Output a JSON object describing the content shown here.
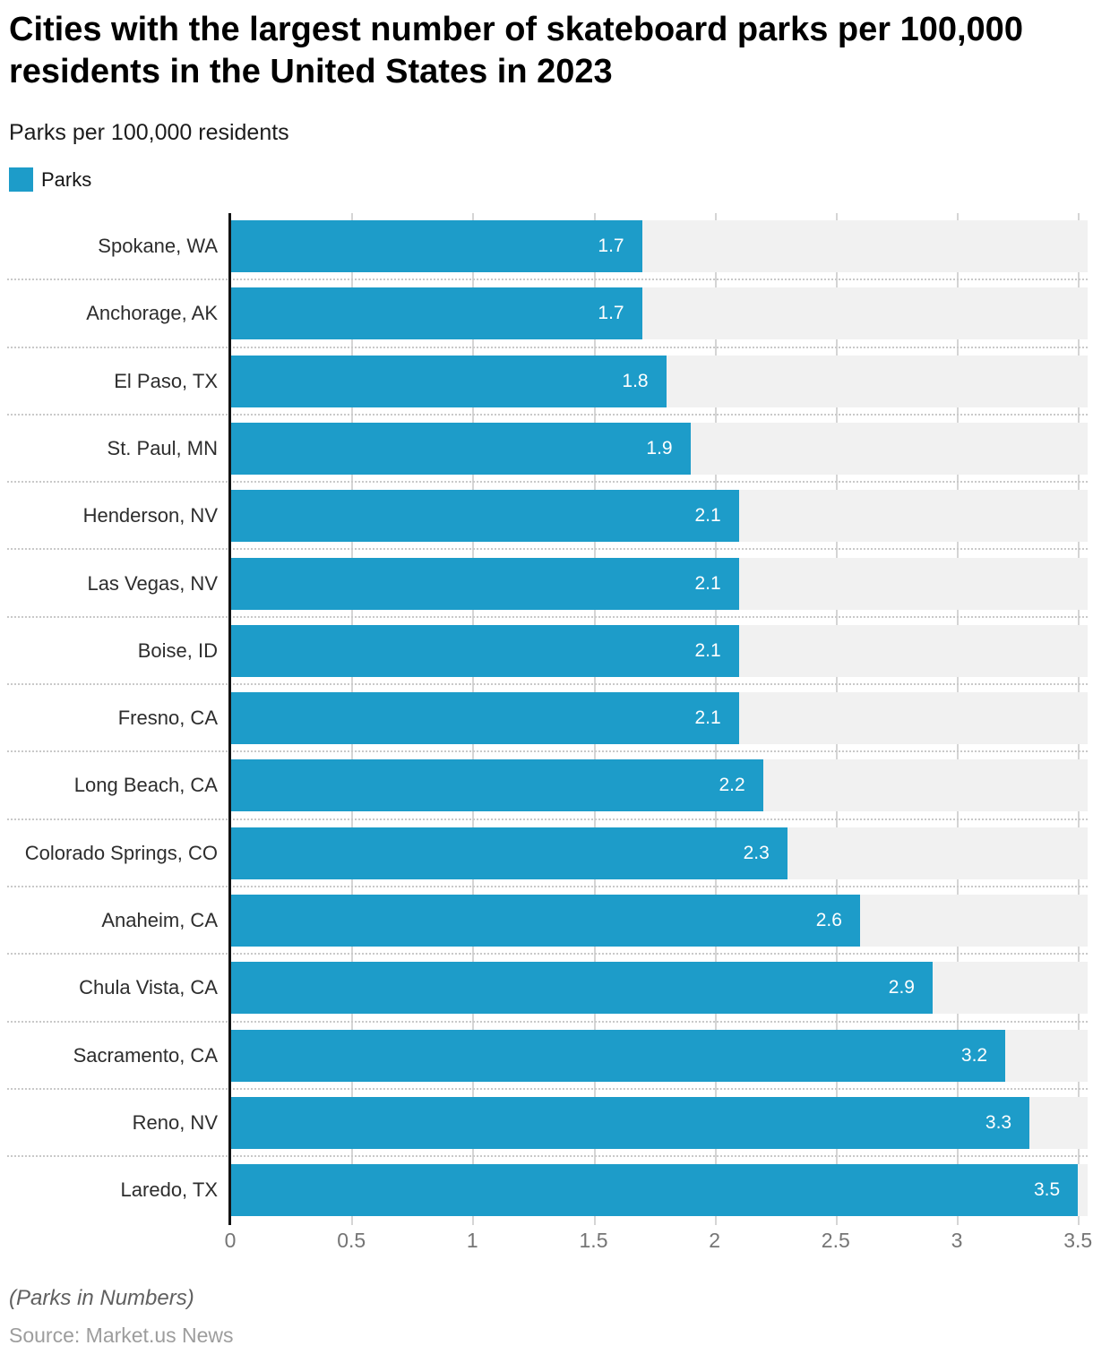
{
  "title": "Cities with the largest number of skateboard parks per 100,000 residents in the United States in 2023",
  "subtitle": "Parks per 100,000 residents",
  "legend": {
    "label": "Parks",
    "color": "#1d9cc9"
  },
  "chart_data": {
    "type": "bar",
    "orientation": "horizontal",
    "title": "Cities with the largest number of skateboard parks per 100,000 residents in the United States in 2023",
    "subtitle": "Parks per 100,000 residents",
    "categories": [
      "Spokane, WA",
      "Anchorage, AK",
      "El Paso, TX",
      "St. Paul, MN",
      "Henderson, NV",
      "Las Vegas, NV",
      "Boise, ID",
      "Fresno, CA",
      "Long Beach, CA",
      "Colorado Springs, CO",
      "Anaheim, CA",
      "Chula Vista, CA",
      "Sacramento, CA",
      "Reno, NV",
      "Laredo, TX"
    ],
    "values": [
      1.7,
      1.7,
      1.8,
      1.9,
      2.1,
      2.1,
      2.1,
      2.1,
      2.2,
      2.3,
      2.6,
      2.9,
      3.2,
      3.3,
      3.5
    ],
    "series": [
      {
        "name": "Parks",
        "color": "#1d9cc9",
        "values": [
          1.7,
          1.7,
          1.8,
          1.9,
          2.1,
          2.1,
          2.1,
          2.1,
          2.2,
          2.3,
          2.6,
          2.9,
          3.2,
          3.3,
          3.5
        ]
      }
    ],
    "xlabel": "",
    "ylabel": "",
    "xlim": [
      0,
      3.54
    ],
    "x_ticks": [
      {
        "value": 0,
        "label": "0"
      },
      {
        "value": 0.5,
        "label": "0.5"
      },
      {
        "value": 1,
        "label": "1"
      },
      {
        "value": 1.5,
        "label": "1.5"
      },
      {
        "value": 2,
        "label": "2"
      },
      {
        "value": 2.5,
        "label": "2.5"
      },
      {
        "value": 3,
        "label": "3"
      },
      {
        "value": 3.5,
        "label": "3.5"
      }
    ],
    "grid": "vertical gridlines every 0.5, dotted horizontal row separators",
    "legend_position": "top-left",
    "value_labels": "inside bar end, white"
  },
  "footer": {
    "note": "(Parks in Numbers)",
    "source": "Source: Market.us News"
  },
  "colors": {
    "bar": "#1d9cc9",
    "row_background": "#f1f1f1",
    "gridline": "#d5d5d5",
    "separator": "#c9c9c9",
    "axis_line": "#141414",
    "category_label": "#2d2d2d",
    "tick_label": "#757575",
    "value_label": "#ffffff",
    "title": "#000000",
    "note": "#606060",
    "source": "#9d9d9d",
    "background": "#ffffff"
  }
}
